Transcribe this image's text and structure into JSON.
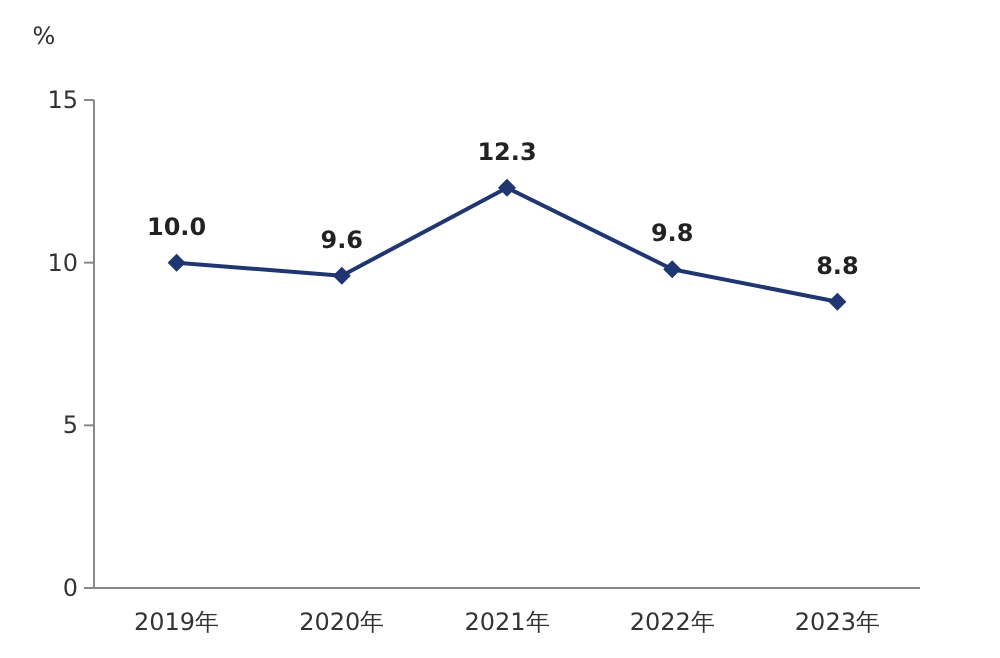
{
  "chart_data": {
    "type": "line",
    "ylabel": "%",
    "categories": [
      "2019年",
      "2020年",
      "2021年",
      "2022年",
      "2023年"
    ],
    "series": [
      {
        "color": "#1f3670",
        "values": [
          10.0,
          9.6,
          12.3,
          9.8,
          8.8
        ],
        "value_labels": [
          "10.0",
          "9.6",
          "12.3",
          "9.8",
          "8.8"
        ]
      }
    ],
    "ylim": [
      0,
      15
    ],
    "yticks": [
      0,
      5,
      10,
      15
    ],
    "marker": "diamond",
    "line_style": "solid",
    "grid": false
  }
}
